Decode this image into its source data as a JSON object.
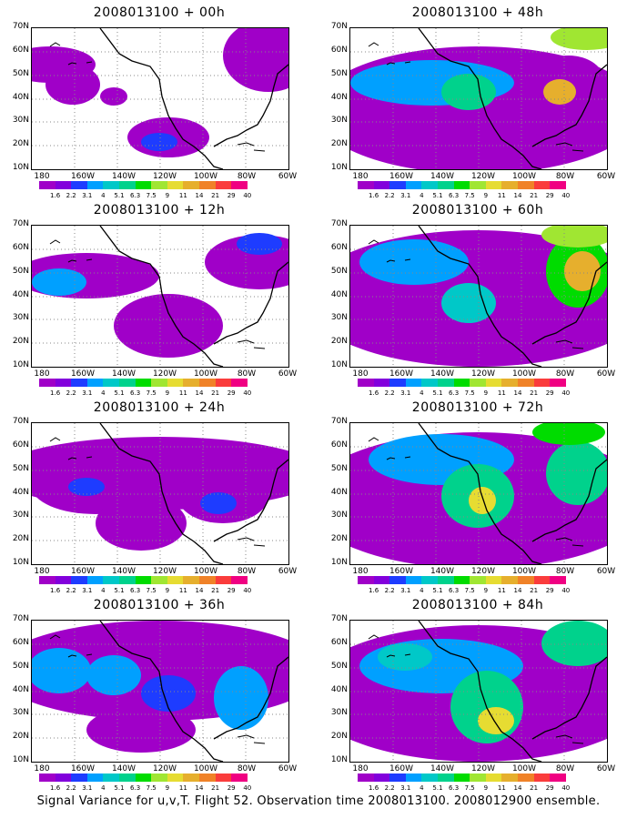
{
  "panels": [
    {
      "title": "2008013100 + 00h"
    },
    {
      "title": "2008013100 + 48h"
    },
    {
      "title": "2008013100 + 12h"
    },
    {
      "title": "2008013100 + 60h"
    },
    {
      "title": "2008013100 + 24h"
    },
    {
      "title": "2008013100 + 72h"
    },
    {
      "title": "2008013100 + 36h"
    },
    {
      "title": "2008013100 + 84h"
    }
  ],
  "lat_labels": [
    "70N",
    "60N",
    "50N",
    "40N",
    "30N",
    "20N",
    "10N"
  ],
  "lon_labels": [
    "180",
    "160W",
    "140W",
    "120W",
    "100W",
    "80W",
    "60W"
  ],
  "colorbar": {
    "ticks": [
      "1.6",
      "2.2",
      "3.1",
      "4",
      "5.1",
      "6.3",
      "7.5",
      "9",
      "11",
      "14",
      "21",
      "29",
      "40"
    ],
    "colors": [
      "#a000c8",
      "#8200dc",
      "#1e3cff",
      "#00a0ff",
      "#00c8c8",
      "#00d28c",
      "#00dc00",
      "#a0e632",
      "#e6dc32",
      "#e6af2d",
      "#f08228",
      "#fa3c3c",
      "#f00082"
    ]
  },
  "caption": "Signal Variance for u,v,T. Flight 52. Observation time 2008013100. 2008012900 ensemble."
}
